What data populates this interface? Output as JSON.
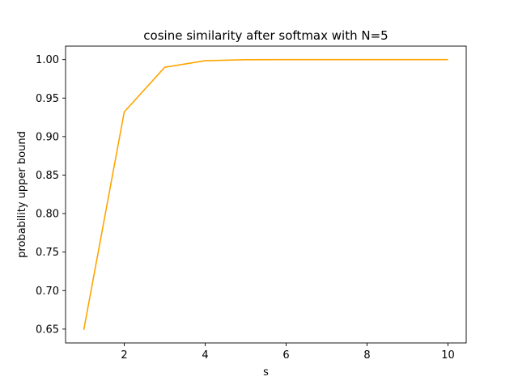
{
  "chart_data": {
    "type": "line",
    "title": "cosine similarity after softmax with N=5",
    "xlabel": "s",
    "ylabel": "probability upper bound",
    "xlim": [
      0.55,
      10.45
    ],
    "ylim": [
      0.632,
      1.0175
    ],
    "xticks": [
      2,
      4,
      6,
      8,
      10
    ],
    "xtick_labels": [
      "2",
      "4",
      "6",
      "8",
      "10"
    ],
    "yticks": [
      0.65,
      0.7,
      0.75,
      0.8,
      0.85,
      0.9,
      0.95,
      1.0
    ],
    "ytick_labels": [
      "0.65",
      "0.70",
      "0.75",
      "0.80",
      "0.85",
      "0.90",
      "0.95",
      "1.00"
    ],
    "grid": false,
    "series": [
      {
        "color": "#ffa500",
        "x": [
          1,
          2,
          3,
          4,
          5,
          6,
          7,
          8,
          9,
          10
        ],
        "y": [
          0.649,
          0.932,
          0.99,
          0.9985,
          0.9998,
          1.0,
          1.0,
          1.0,
          1.0,
          1.0
        ]
      }
    ]
  }
}
